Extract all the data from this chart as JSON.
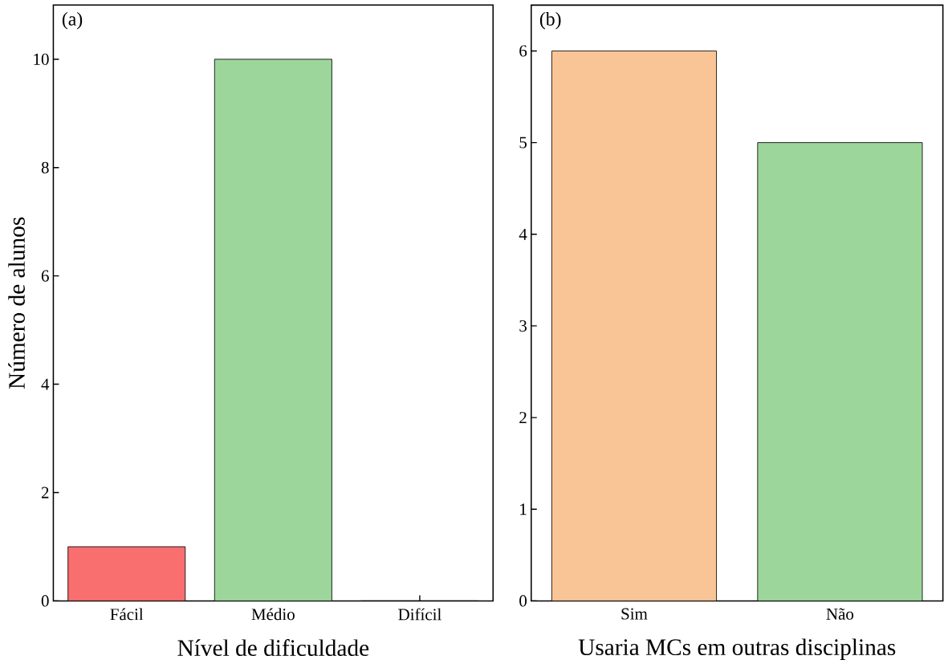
{
  "chart_data": [
    {
      "type": "bar",
      "categories": [
        "Fácil",
        "Médio",
        "Difícil"
      ],
      "values": [
        1,
        10,
        0
      ],
      "colors": [
        "#f96e6e",
        "#9dd69b",
        "#9dd69b"
      ],
      "ylim": [
        0,
        11
      ],
      "yticks": [
        0,
        2,
        4,
        6,
        8,
        10
      ],
      "xlabel": "Nível de dificuldade",
      "ylabel": "Número de alunos",
      "annotations": [
        "(a)"
      ]
    },
    {
      "type": "bar",
      "categories": [
        "Sim",
        "Não"
      ],
      "values": [
        6,
        5
      ],
      "colors": [
        "#f9c596",
        "#9dd69b"
      ],
      "ylim": [
        0,
        6.5
      ],
      "yticks": [
        0,
        1,
        2,
        3,
        4,
        5,
        6
      ],
      "xlabel": "Usaria MCs em outras disciplinas",
      "annotations": [
        "(b)"
      ]
    }
  ]
}
